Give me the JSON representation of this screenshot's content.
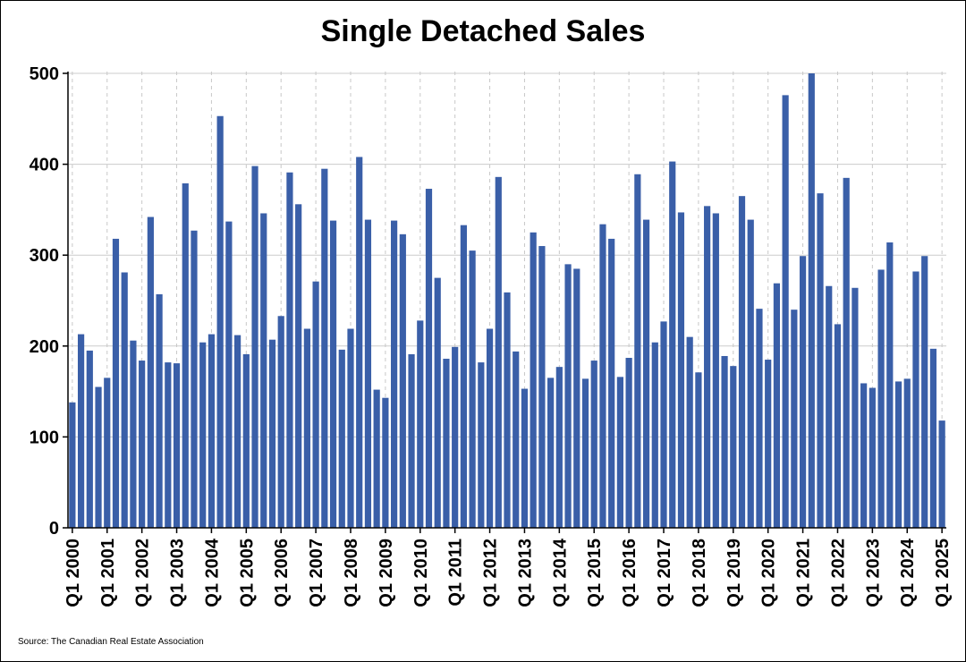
{
  "chart_data": {
    "type": "bar",
    "title": "Single Detached Sales",
    "xlabel": "",
    "ylabel": "",
    "ylim": [
      0,
      500
    ],
    "yticks": [
      0,
      100,
      200,
      300,
      400,
      500
    ],
    "grid": {
      "y": true,
      "x": "dashed at Q1 of each year"
    },
    "color": "#3a5fa8",
    "categories": [
      "Q1 2000",
      "Q2 2000",
      "Q3 2000",
      "Q4 2000",
      "Q1 2001",
      "Q2 2001",
      "Q3 2001",
      "Q4 2001",
      "Q1 2002",
      "Q2 2002",
      "Q3 2002",
      "Q4 2002",
      "Q1 2003",
      "Q2 2003",
      "Q3 2003",
      "Q4 2003",
      "Q1 2004",
      "Q2 2004",
      "Q3 2004",
      "Q4 2004",
      "Q1 2005",
      "Q2 2005",
      "Q3 2005",
      "Q4 2005",
      "Q1 2006",
      "Q2 2006",
      "Q3 2006",
      "Q4 2006",
      "Q1 2007",
      "Q2 2007",
      "Q3 2007",
      "Q4 2007",
      "Q1 2008",
      "Q2 2008",
      "Q3 2008",
      "Q4 2008",
      "Q1 2009",
      "Q2 2009",
      "Q3 2009",
      "Q4 2009",
      "Q1 2010",
      "Q2 2010",
      "Q3 2010",
      "Q4 2010",
      "Q1 2011",
      "Q2 2011",
      "Q3 2011",
      "Q4 2011",
      "Q1 2012",
      "Q2 2012",
      "Q3 2012",
      "Q4 2012",
      "Q1 2013",
      "Q2 2013",
      "Q3 2013",
      "Q4 2013",
      "Q1 2014",
      "Q2 2014",
      "Q3 2014",
      "Q4 2014",
      "Q1 2015",
      "Q2 2015",
      "Q3 2015",
      "Q4 2015",
      "Q1 2016",
      "Q2 2016",
      "Q3 2016",
      "Q4 2016",
      "Q1 2017",
      "Q2 2017",
      "Q3 2017",
      "Q4 2017",
      "Q1 2018",
      "Q2 2018",
      "Q3 2018",
      "Q4 2018",
      "Q1 2019",
      "Q2 2019",
      "Q3 2019",
      "Q4 2019",
      "Q1 2020",
      "Q2 2020",
      "Q3 2020",
      "Q4 2020",
      "Q1 2021",
      "Q2 2021",
      "Q3 2021",
      "Q4 2021",
      "Q1 2022",
      "Q2 2022",
      "Q3 2022",
      "Q4 2022",
      "Q1 2023",
      "Q2 2023",
      "Q3 2023",
      "Q4 2023",
      "Q1 2024",
      "Q2 2024",
      "Q3 2024",
      "Q4 2024",
      "Q1 2025"
    ],
    "values": [
      138,
      213,
      195,
      155,
      165,
      318,
      281,
      206,
      184,
      342,
      257,
      182,
      181,
      379,
      327,
      204,
      213,
      453,
      337,
      212,
      191,
      398,
      346,
      207,
      233,
      391,
      356,
      219,
      271,
      395,
      338,
      196,
      219,
      408,
      339,
      152,
      143,
      338,
      323,
      191,
      228,
      373,
      275,
      186,
      199,
      333,
      305,
      182,
      219,
      386,
      259,
      194,
      153,
      325,
      310,
      165,
      177,
      290,
      285,
      164,
      184,
      334,
      318,
      166,
      187,
      389,
      339,
      204,
      227,
      403,
      347,
      210,
      171,
      354,
      346,
      189,
      178,
      365,
      339,
      241,
      185,
      269,
      476,
      240,
      299,
      502,
      368,
      266,
      224,
      385,
      264,
      159,
      154,
      284,
      314,
      161,
      164,
      282,
      299,
      197,
      118
    ],
    "xtick_labels": [
      "Q1 2000",
      "Q1 2001",
      "Q1 2002",
      "Q1 2003",
      "Q1 2004",
      "Q1 2005",
      "Q1 2006",
      "Q1 2007",
      "Q1 2008",
      "Q1 2009",
      "Q1 2010",
      "Q1 2011",
      "Q1 2012",
      "Q1 2013",
      "Q1 2014",
      "Q1 2015",
      "Q1 2016",
      "Q1 2017",
      "Q1 2018",
      "Q1 2019",
      "Q1 2020",
      "Q1 2021",
      "Q1 2022",
      "Q1 2023",
      "Q1 2024",
      "Q1 2025"
    ]
  },
  "source": "Source: The Canadian Real Estate Association"
}
